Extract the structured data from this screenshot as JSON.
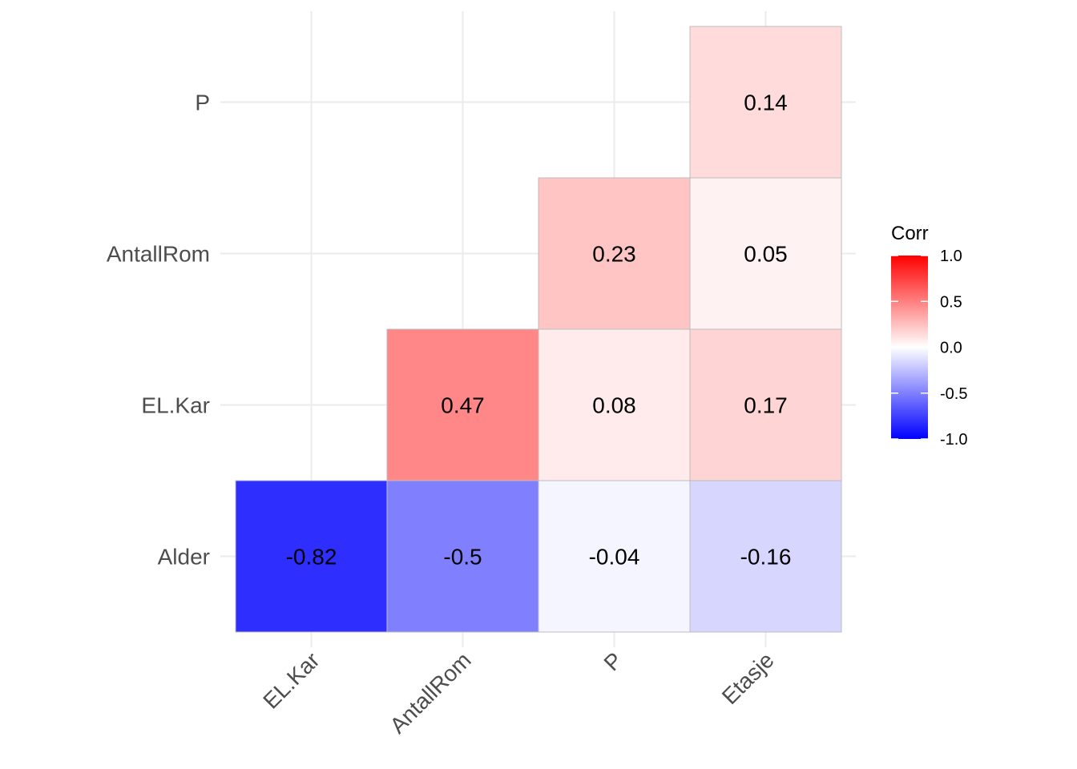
{
  "chart_data": {
    "type": "heatmap",
    "x_categories": [
      "EL.Kar",
      "AntallRom",
      "P",
      "Etasje"
    ],
    "y_categories": [
      "Alder",
      "EL.Kar",
      "AntallRom",
      "P"
    ],
    "cells": [
      {
        "x": "EL.Kar",
        "y": "Alder",
        "value": -0.82,
        "label": "-0.82"
      },
      {
        "x": "AntallRom",
        "y": "Alder",
        "value": -0.5,
        "label": "-0.5"
      },
      {
        "x": "P",
        "y": "Alder",
        "value": -0.04,
        "label": "-0.04"
      },
      {
        "x": "Etasje",
        "y": "Alder",
        "value": -0.16,
        "label": "-0.16"
      },
      {
        "x": "AntallRom",
        "y": "EL.Kar",
        "value": 0.47,
        "label": "0.47"
      },
      {
        "x": "P",
        "y": "EL.Kar",
        "value": 0.08,
        "label": "0.08"
      },
      {
        "x": "Etasje",
        "y": "EL.Kar",
        "value": 0.17,
        "label": "0.17"
      },
      {
        "x": "P",
        "y": "AntallRom",
        "value": 0.23,
        "label": "0.23"
      },
      {
        "x": "Etasje",
        "y": "AntallRom",
        "value": 0.05,
        "label": "0.05"
      },
      {
        "x": "Etasje",
        "y": "P",
        "value": 0.14,
        "label": "0.14"
      }
    ],
    "legend": {
      "title": "Corr",
      "range": [
        -1.0,
        1.0
      ],
      "ticks": [
        "1.0",
        "0.5",
        "0.0",
        "-0.5",
        "-1.0"
      ],
      "tick_values": [
        1.0,
        0.5,
        0.0,
        -0.5,
        -1.0
      ],
      "colors": {
        "low": "#0000ff",
        "mid": "#ffffff",
        "high": "#ff0000"
      },
      "placement": "right"
    },
    "grid": true
  }
}
